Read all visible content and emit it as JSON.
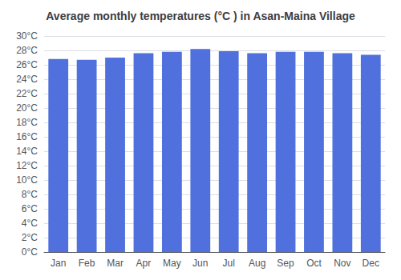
{
  "chart_data": {
    "type": "bar",
    "title": "Average monthly temperatures (°C ) in Asan-Maina Village",
    "categories": [
      "Jan",
      "Feb",
      "Mar",
      "Apr",
      "May",
      "Jun",
      "Jul",
      "Aug",
      "Sep",
      "Oct",
      "Nov",
      "Dec"
    ],
    "values": [
      26.8,
      26.7,
      27.0,
      27.6,
      27.8,
      28.2,
      27.9,
      27.6,
      27.8,
      27.8,
      27.6,
      27.4
    ],
    "ylim": [
      0,
      30
    ],
    "yticks": [
      {
        "value": 0,
        "label": "0°C"
      },
      {
        "value": 2,
        "label": "2°C"
      },
      {
        "value": 4,
        "label": "4°C"
      },
      {
        "value": 6,
        "label": "6°C"
      },
      {
        "value": 8,
        "label": "8°C"
      },
      {
        "value": 10,
        "label": "10°C"
      },
      {
        "value": 12,
        "label": "12°C"
      },
      {
        "value": 14,
        "label": "14°C"
      },
      {
        "value": 16,
        "label": "16°C"
      },
      {
        "value": 18,
        "label": "18°C"
      },
      {
        "value": 20,
        "label": "20°C"
      },
      {
        "value": 22,
        "label": "22°C"
      },
      {
        "value": 24,
        "label": "24°C"
      },
      {
        "value": 26,
        "label": "26°C"
      },
      {
        "value": 28,
        "label": "28°C"
      },
      {
        "value": 30,
        "label": "30°C"
      }
    ],
    "grid": true
  }
}
